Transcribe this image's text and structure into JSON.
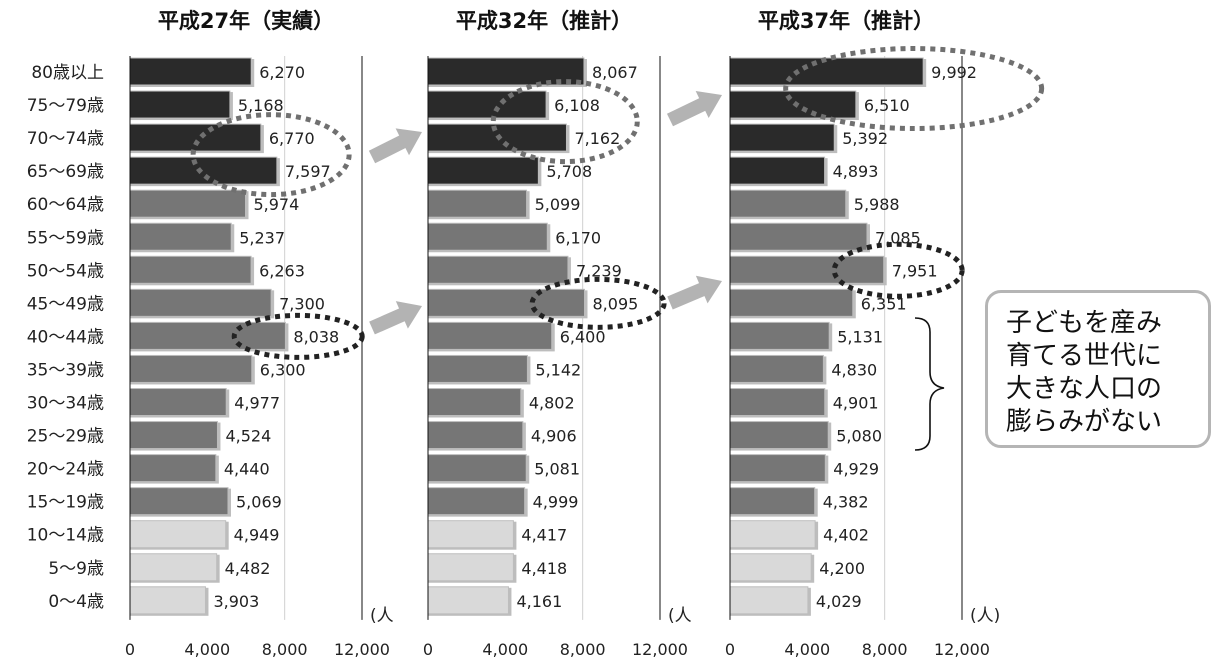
{
  "chart_data": [
    {
      "type": "bar",
      "title": "平成27年（実績）",
      "categories": [
        "80歳以上",
        "75～79歳",
        "70～74歳",
        "65～69歳",
        "60～64歳",
        "55～59歳",
        "50～54歳",
        "45～49歳",
        "40～44歳",
        "35～39歳",
        "30～34歳",
        "25～29歳",
        "20～24歳",
        "15～19歳",
        "10～14歳",
        "5～9歳",
        "0～4歳"
      ],
      "values": [
        6270,
        5168,
        6770,
        7597,
        5974,
        5237,
        6263,
        7300,
        8038,
        6300,
        4977,
        4524,
        4440,
        5069,
        4949,
        4482,
        3903
      ],
      "value_labels": [
        "6,270",
        "5,168",
        "6,770",
        "7,597",
        "5,974",
        "5,237",
        "6,263",
        "7,300",
        "8,038",
        "6,300",
        "4,977",
        "4,524",
        "4,440",
        "5,069",
        "4,949",
        "4,482",
        "3,903"
      ],
      "xlim": [
        0,
        12000
      ],
      "xticks": [
        "0",
        "4,000",
        "8,000",
        "12,000"
      ],
      "unit": "(人",
      "highlight_rows": [
        2,
        3,
        8
      ]
    },
    {
      "type": "bar",
      "title": "平成32年（推計）",
      "categories": [
        "80歳以上",
        "75～79歳",
        "70～74歳",
        "65～69歳",
        "60～64歳",
        "55～59歳",
        "50～54歳",
        "45～49歳",
        "40～44歳",
        "35～39歳",
        "30～34歳",
        "25～29歳",
        "20～24歳",
        "15～19歳",
        "10～14歳",
        "5～9歳",
        "0～4歳"
      ],
      "values": [
        8067,
        6108,
        7162,
        5708,
        5099,
        6170,
        7239,
        8095,
        6400,
        5142,
        4802,
        4906,
        5081,
        4999,
        4417,
        4418,
        4161
      ],
      "value_labels": [
        "8,067",
        "6,108",
        "7,162",
        "5,708",
        "5,099",
        "6,170",
        "7,239",
        "8,095",
        "6,400",
        "5,142",
        "4,802",
        "4,906",
        "5,081",
        "4,999",
        "4,417",
        "4,418",
        "4,161"
      ],
      "xlim": [
        0,
        12000
      ],
      "xticks": [
        "0",
        "4,000",
        "8,000",
        "12,000"
      ],
      "unit": "(人",
      "highlight_rows": [
        1,
        2,
        7
      ]
    },
    {
      "type": "bar",
      "title": "平成37年（推計）",
      "categories": [
        "80歳以上",
        "75～79歳",
        "70～74歳",
        "65～69歳",
        "60～64歳",
        "55～59歳",
        "50～54歳",
        "45～49歳",
        "40～44歳",
        "35～39歳",
        "30～34歳",
        "25～29歳",
        "20～24歳",
        "15～19歳",
        "10～14歳",
        "5～9歳",
        "0～4歳"
      ],
      "values": [
        9992,
        6510,
        5392,
        4893,
        5988,
        7085,
        7951,
        6351,
        5131,
        4830,
        4901,
        5080,
        4929,
        4382,
        4402,
        4200,
        4029
      ],
      "value_labels": [
        "9,992",
        "6,510",
        "5,392",
        "4,893",
        "5,988",
        "7,085",
        "7,951",
        "6,351",
        "5,131",
        "4,830",
        "4,901",
        "5,080",
        "4,929",
        "4,382",
        "4,402",
        "4,200",
        "4,029"
      ],
      "xlim": [
        0,
        12000
      ],
      "xticks": [
        "0",
        "4,000",
        "8,000",
        "12,000"
      ],
      "unit": "(人)",
      "highlight_rows": [
        0,
        1,
        6
      ]
    }
  ],
  "colors": {
    "age_65_plus": "#2a2a2a",
    "age_15_64": "#767676",
    "age_0_14": "#d9d9d9",
    "bar_border": "#bdbdbd",
    "dashed_ellipse": "#707070",
    "highlight_dotted": "#222222",
    "arrow": "#b3b3b3"
  },
  "callout": {
    "lines": [
      "子どもを産み",
      "育てる世代に",
      "大きな人口の",
      "膨らみがない"
    ]
  }
}
